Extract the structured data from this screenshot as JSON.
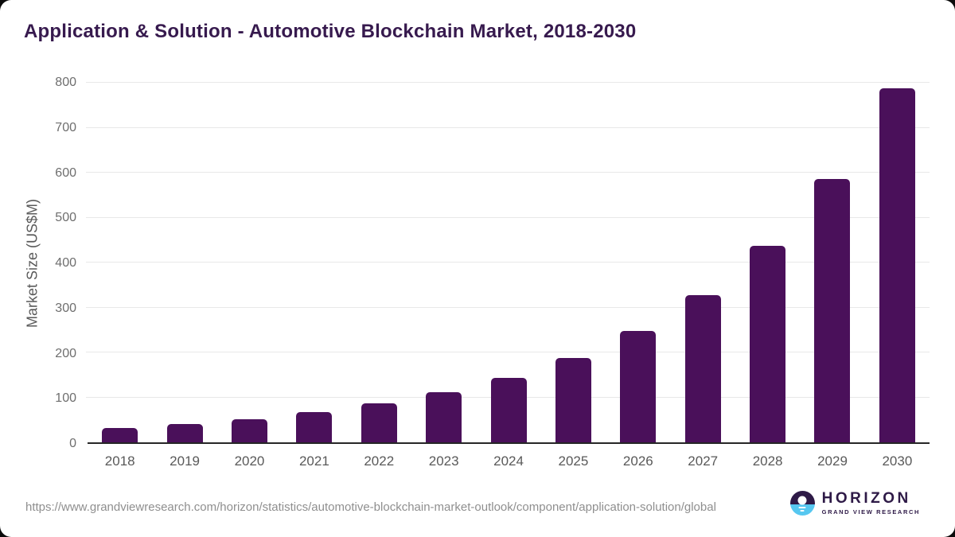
{
  "chart_data": {
    "type": "bar",
    "title": "Application & Solution - Automotive Blockchain Market, 2018-2030",
    "categories": [
      "2018",
      "2019",
      "2020",
      "2021",
      "2022",
      "2023",
      "2024",
      "2025",
      "2026",
      "2027",
      "2028",
      "2029",
      "2030"
    ],
    "values": [
      32,
      40,
      51,
      67,
      86,
      111,
      144,
      188,
      248,
      328,
      438,
      585,
      787
    ],
    "xlabel": "",
    "ylabel": "Market Size (US$M)",
    "ylim": [
      0,
      800
    ],
    "ytick_interval": 100,
    "yticks": [
      0,
      100,
      200,
      300,
      400,
      500,
      600,
      700,
      800
    ],
    "grid": true,
    "legend": false
  },
  "footer": {
    "source_url": "https://www.grandviewresearch.com/horizon/statistics/automotive-blockchain-market-outlook/component/application-solution/global",
    "logo": {
      "brand": "HORIZON",
      "tagline": "GRAND VIEW RESEARCH",
      "icon": "horizon-sunset-circle-icon"
    }
  },
  "colors": {
    "bar": "#4A105A",
    "title": "#371A4E",
    "axis_line": "#262626",
    "gridline": "#E8E8E8",
    "x_tick_label": "#595959",
    "y_tick_label": "#6E6E6E",
    "url_text": "#8F8F8F",
    "logo_purple": "#2E1A47",
    "logo_blue": "#56C7F0",
    "background": "#FFFFFF"
  }
}
